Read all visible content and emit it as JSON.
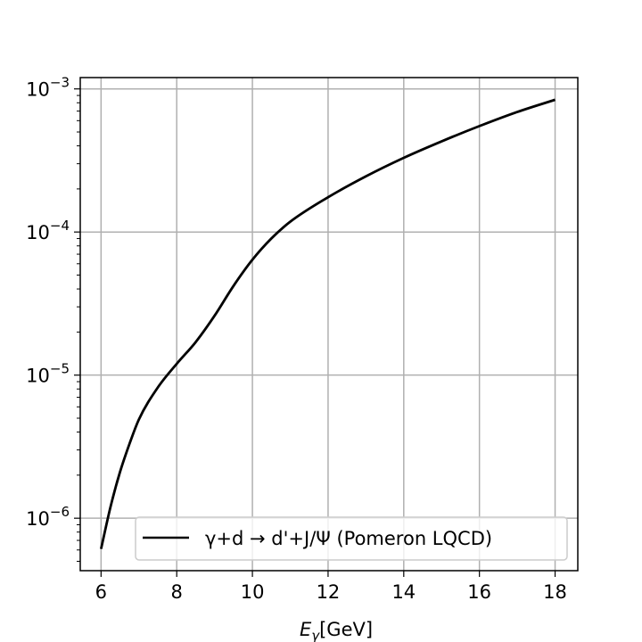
{
  "chart_data": {
    "type": "line",
    "xlabel": "E_γ[GeV]",
    "xlabel_main": "E",
    "xlabel_sub": "γ",
    "xlabel_rest": "[GeV]",
    "ylabel": "",
    "yscale": "log",
    "xlim": [
      5.45,
      18.6
    ],
    "ylim": [
      4.3e-07,
      0.0012
    ],
    "grid": true,
    "legend_position": "lower-right",
    "x_ticks": [
      6,
      8,
      10,
      12,
      14,
      16,
      18
    ],
    "x_tick_labels": [
      "6",
      "8",
      "10",
      "12",
      "14",
      "16",
      "18"
    ],
    "y_ticks": [
      {
        "value": 1e-06,
        "base": "10",
        "exp": "−6"
      },
      {
        "value": 1e-05,
        "base": "10",
        "exp": "−5"
      },
      {
        "value": 0.0001,
        "base": "10",
        "exp": "−4"
      },
      {
        "value": 0.001,
        "base": "10",
        "exp": "−3"
      }
    ],
    "series": [
      {
        "name": "γ+d → d'+J/Ψ (Pomeron LQCD)",
        "color": "#000000",
        "x": [
          6.0,
          6.25,
          6.5,
          6.75,
          7.0,
          7.5,
          8.0,
          8.5,
          9.0,
          9.5,
          10.0,
          10.5,
          11.0,
          12.0,
          13.0,
          14.0,
          15.0,
          16.0,
          17.0,
          18.0
        ],
        "y": [
          6.1e-07,
          1.2e-06,
          2.1e-06,
          3.3e-06,
          4.9e-06,
          8.2e-06,
          1.2e-05,
          1.7e-05,
          2.6e-05,
          4.2e-05,
          6.4e-05,
          9e-05,
          0.000118,
          0.000175,
          0.000245,
          0.00033,
          0.00043,
          0.00055,
          0.00069,
          0.00084
        ]
      }
    ]
  }
}
